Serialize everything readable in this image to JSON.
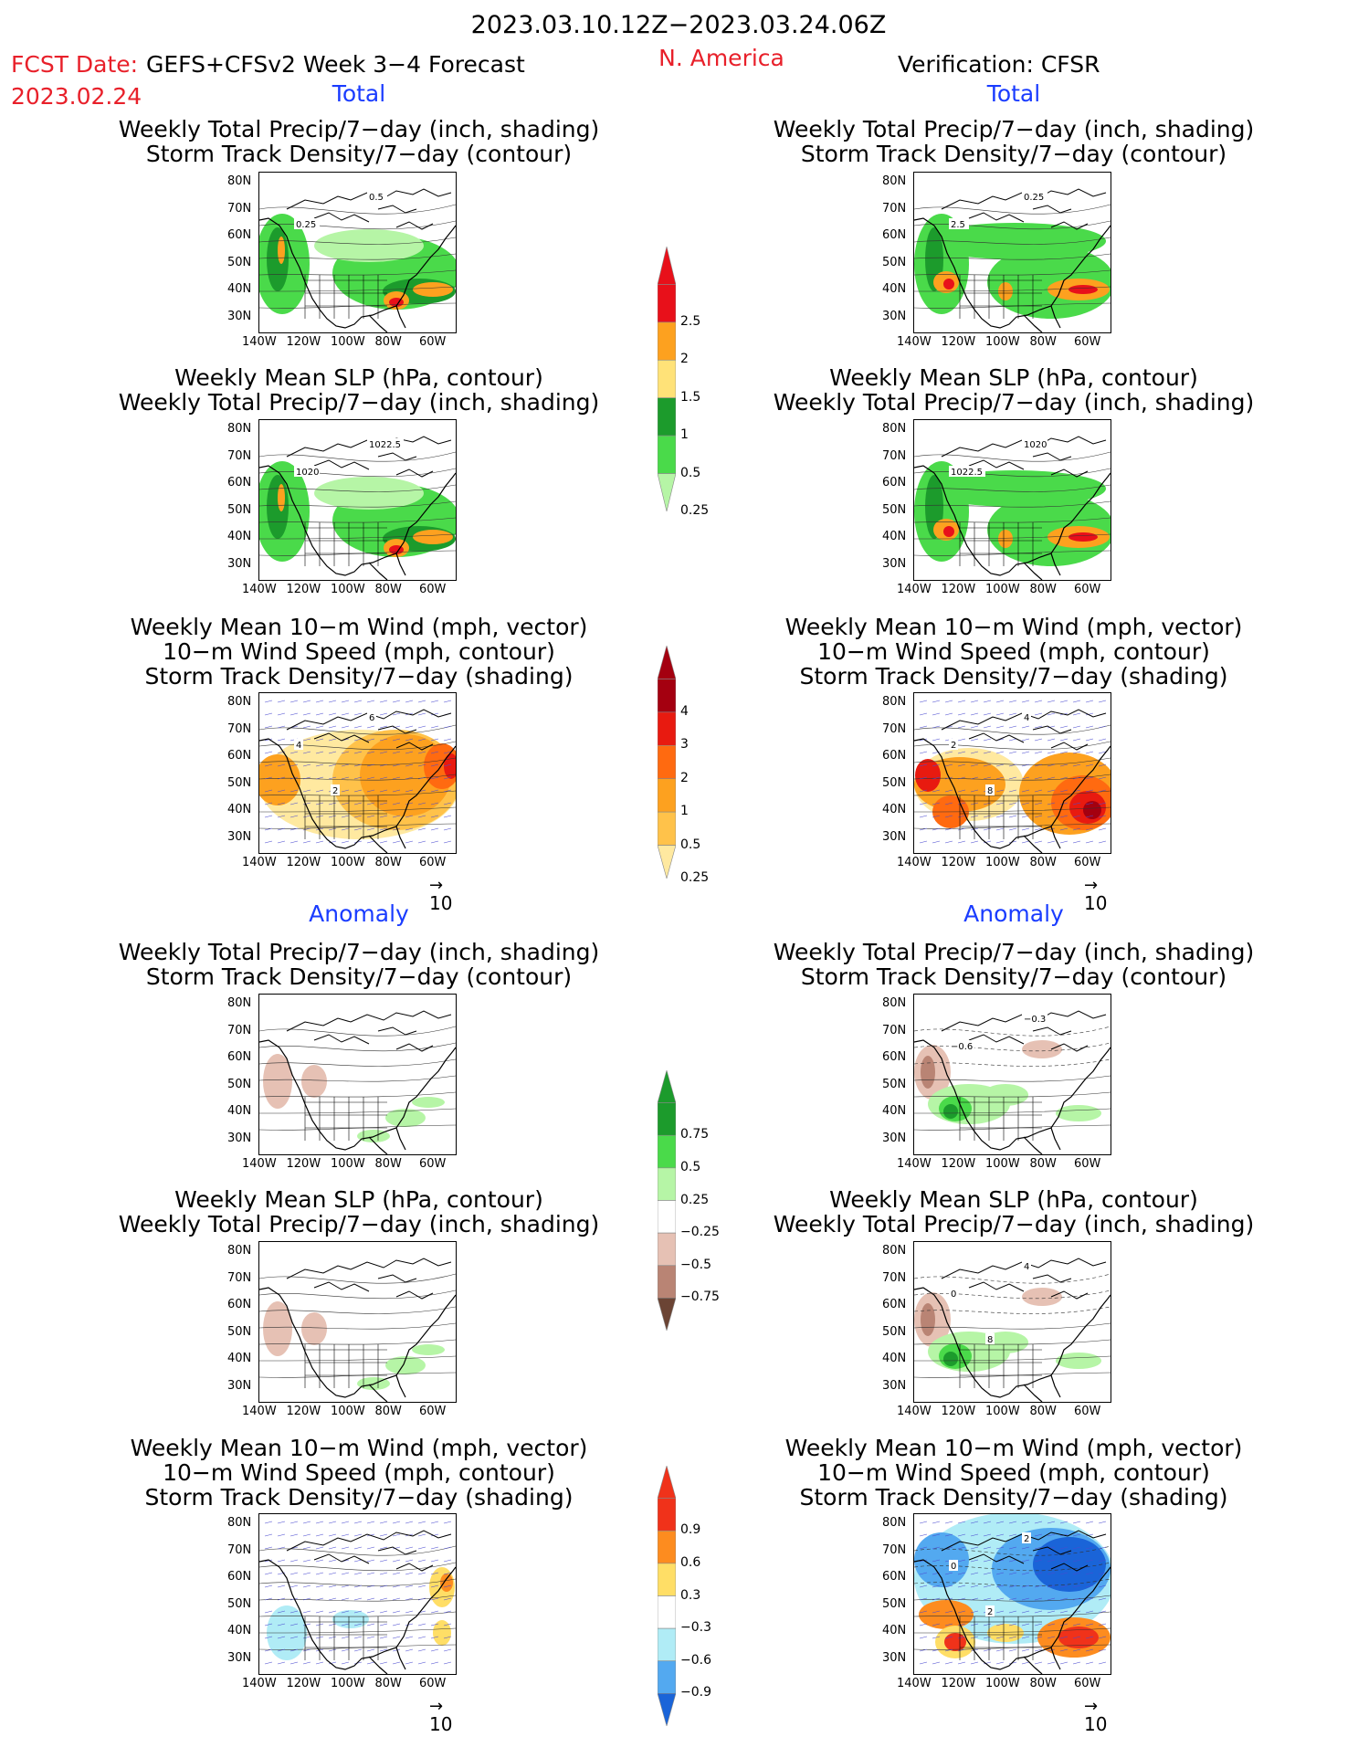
{
  "header": {
    "period": "2023.03.10.12Z−2023.03.24.06Z",
    "fcst_label": "FCST Date:",
    "fcst_date": "2023.02.24",
    "model": "GEFS+CFSv2 Week 3−4 Forecast",
    "region": "N. America",
    "verification": "Verification: CFSR"
  },
  "sections": {
    "total": "Total",
    "anomaly": "Anomaly"
  },
  "titles": {
    "precip_storm": "Weekly Total Precip/7−day (inch, shading)\nStorm Track Density/7−day (contour)",
    "slp_precip": "Weekly Mean SLP (hPa, contour)\nWeekly Total Precip/7−day (inch, shading)",
    "wind_storm": "Weekly Mean 10−m Wind (mph, vector)\n10−m Wind Speed (mph, contour)\nStorm Track Density/7−day (shading)"
  },
  "axes": {
    "lat_ticks": [
      "80N",
      "70N",
      "60N",
      "50N",
      "40N",
      "30N"
    ],
    "lon_ticks": [
      "140W",
      "120W",
      "100W",
      "80W",
      "60W"
    ]
  },
  "vector_ref": "10",
  "colorbars": {
    "precip_total": {
      "labels": [
        "2.5",
        "2",
        "1.5",
        "1",
        "0.5",
        "0.25"
      ],
      "colors": [
        "#e8101a",
        "#fda11f",
        "#ffe278",
        "#1c9b2c",
        "#4ada4a",
        "#b6f5a6"
      ]
    },
    "storm_total": {
      "labels": [
        "4",
        "3",
        "2",
        "1",
        "0.5",
        "0.25"
      ],
      "colors": [
        "#a40010",
        "#e81a10",
        "#ff6a10",
        "#fda11f",
        "#ffc24a",
        "#ffe9a0"
      ]
    },
    "precip_anom": {
      "labels": [
        "0.75",
        "0.5",
        "0.25",
        "−0.25",
        "−0.5",
        "−0.75"
      ],
      "colors": [
        "#1c9b2c",
        "#4ada4a",
        "#b6f5a6",
        "#ffffff",
        "#e6c1b4",
        "#b98474",
        "#6b4434"
      ]
    },
    "storm_anom": {
      "labels": [
        "0.9",
        "0.6",
        "0.3",
        "−0.3",
        "−0.6",
        "−0.9"
      ],
      "colors": [
        "#f0321a",
        "#fd8c1f",
        "#ffde66",
        "#ffffff",
        "#b0ecf6",
        "#53a9f0",
        "#1a64d8"
      ]
    }
  },
  "maps": {
    "fc_precip_total": {
      "contour_labels": [
        "0.5",
        "0.25"
      ]
    },
    "fc_slp_total": {
      "contour_labels": [
        "1022.5",
        "1020"
      ]
    },
    "fc_wind_total": {
      "contour_labels": [
        "6",
        "4",
        "2"
      ]
    },
    "ob_precip_total": {
      "contour_labels": [
        "0.25",
        "2.5"
      ]
    },
    "ob_slp_total": {
      "contour_labels": [
        "1020",
        "1022.5"
      ]
    },
    "ob_wind_total": {
      "contour_labels": [
        "4",
        "2",
        "8"
      ]
    },
    "ob_precip_anom": {
      "contour_labels": [
        "−0.3",
        "−0.6"
      ]
    },
    "ob_slp_anom": {
      "contour_labels": [
        "4",
        "0",
        "8"
      ]
    },
    "ob_wind_anom": {
      "contour_labels": [
        "2",
        "0",
        "2"
      ]
    }
  }
}
